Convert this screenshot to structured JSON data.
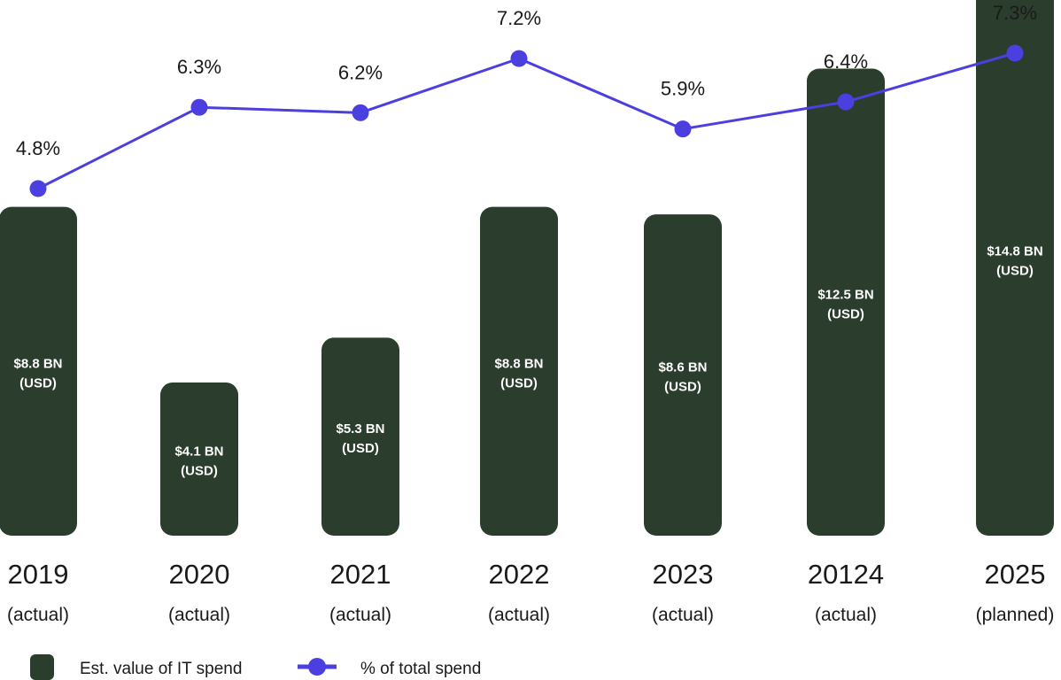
{
  "chart_data": {
    "type": "bar",
    "categories": [
      "2019",
      "2020",
      "2021",
      "2022",
      "2023",
      "20124",
      "2025"
    ],
    "category_status": [
      "(actual)",
      "(actual)",
      "(actual)",
      "(actual)",
      "(actual)",
      "(actual)",
      "(planned)"
    ],
    "series": [
      {
        "name": "Est. value of IT spend",
        "type": "bar",
        "values": [
          8.8,
          4.1,
          5.3,
          8.8,
          8.6,
          12.5,
          14.8
        ],
        "labels_line1": [
          "$8.8 BN",
          "$4.1 BN",
          "$5.3 BN",
          "$8.8 BN",
          "$8.6 BN",
          "$12.5 BN",
          "$14.8 BN"
        ],
        "labels_line2": [
          "(USD)",
          "(USD)",
          "(USD)",
          "(USD)",
          "(USD)",
          "(USD)",
          "(USD)"
        ],
        "color": "#2b3d2c"
      },
      {
        "name": "% of total spend",
        "type": "line",
        "values": [
          4.8,
          6.3,
          6.2,
          7.2,
          5.9,
          6.4,
          7.3
        ],
        "labels": [
          "4.8%",
          "6.3%",
          "6.2%",
          "7.2%",
          "5.9%",
          "6.4%",
          "7.3%"
        ],
        "color": "#4b3fe0"
      }
    ],
    "legend": [
      {
        "label": "Est. value of IT spend",
        "marker": "rounded-square",
        "color": "#2b3d2c"
      },
      {
        "label": "% of total spend",
        "marker": "line-dot",
        "color": "#4b3fe0"
      }
    ],
    "legend_position": "bottom-left",
    "grid": false
  }
}
